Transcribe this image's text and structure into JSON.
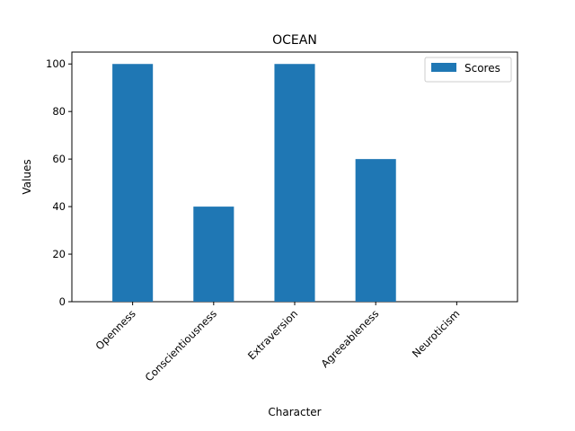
{
  "chart_data": {
    "type": "bar",
    "title": "OCEAN",
    "xlabel": "Character",
    "ylabel": "Values",
    "categories": [
      "Openness",
      "Conscientiousness",
      "Extraversion",
      "Agreeableness",
      "Neuroticism"
    ],
    "series": [
      {
        "name": "Scores",
        "values": [
          100,
          40,
          100,
          60,
          0
        ],
        "color": "#1f77b4"
      }
    ],
    "ylim": [
      0,
      105
    ],
    "yticks": [
      0,
      20,
      40,
      60,
      80,
      100
    ],
    "grid": false,
    "legend": "top-right"
  }
}
